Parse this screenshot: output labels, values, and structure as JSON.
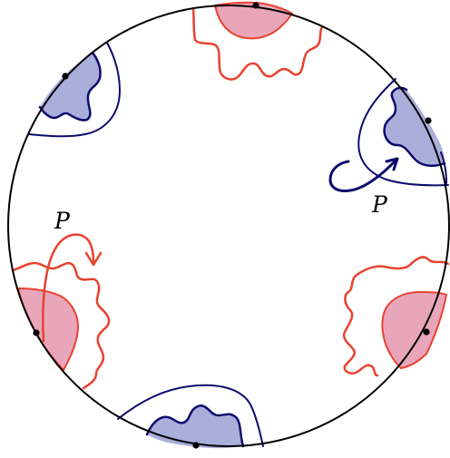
{
  "diagram": {
    "labels": {
      "left": "P",
      "right": "P"
    },
    "colors": {
      "circle": "#000000",
      "red": "#e8432f",
      "red_fill": "#e9a6bb",
      "blue": "#0d0b6e",
      "blue_fill": "#a9aedb",
      "point": "#000000"
    },
    "regions": [
      {
        "name": "top",
        "fill": "red",
        "boundary": "red"
      },
      {
        "name": "upper-right",
        "fill": "blue",
        "boundary": "blue"
      },
      {
        "name": "right",
        "fill": "red",
        "boundary": "red"
      },
      {
        "name": "bottom",
        "fill": "blue",
        "boundary": "blue"
      },
      {
        "name": "left",
        "fill": "red",
        "boundary": "red"
      },
      {
        "name": "upper-left",
        "fill": "blue",
        "boundary": "blue"
      }
    ]
  }
}
